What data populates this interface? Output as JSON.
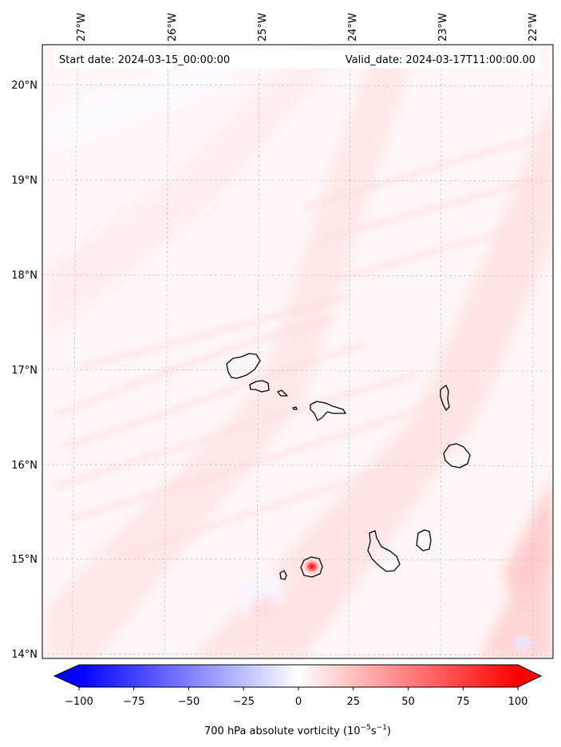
{
  "map": {
    "start_date": "Start date: 2024-03-15_00:00:00",
    "valid_date": "Valid_date: 2024-03-17T11:00:00.00",
    "lon_labels": [
      "27°W",
      "26°W",
      "25°W",
      "24°W",
      "23°W",
      "22°W"
    ],
    "lat_labels": [
      "20°N",
      "19°N",
      "18°N",
      "17°N",
      "16°N",
      "15°N",
      "14°N"
    ],
    "colorbar": {
      "label": "700 hPa absolute vorticity (10",
      "label_exp1": "−5",
      "label_mid": "s",
      "label_exp2": "−1",
      "label_end": ")",
      "ticks": [
        "−100",
        "−75",
        "−50",
        "−25",
        "0",
        "25",
        "50",
        "75",
        "100"
      ],
      "min": -100,
      "max": 100,
      "negative_color": "#0000ff",
      "positive_color": "#ff0000",
      "extend": "both"
    },
    "islands": [
      "Santo Antão",
      "São Vicente",
      "Santa Luzia",
      "Branco",
      "São Nicolau",
      "Sal",
      "Boa Vista",
      "Maio",
      "Santiago",
      "Fogo",
      "Brava"
    ]
  }
}
